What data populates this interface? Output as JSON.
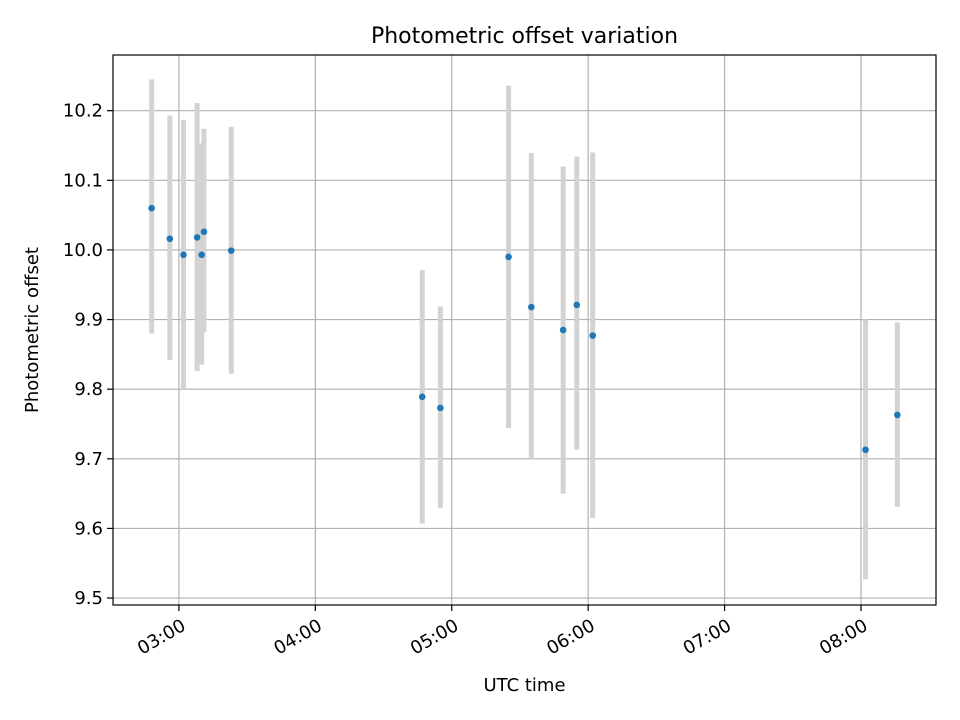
{
  "chart_data": {
    "type": "scatter",
    "title": "Photometric offset variation",
    "xlabel": "UTC time",
    "ylabel": "Photometric offset",
    "x_axis_type": "time",
    "xlim": [
      "02:31",
      "08:33"
    ],
    "ylim": [
      9.49,
      10.28
    ],
    "xticks": [
      "03:00",
      "04:00",
      "05:00",
      "06:00",
      "07:00",
      "08:00"
    ],
    "yticks": [
      9.5,
      9.6,
      9.7,
      9.8,
      9.9,
      10.0,
      10.1,
      10.2
    ],
    "ytick_labels": [
      "9.5",
      "9.6",
      "9.7",
      "9.8",
      "9.9",
      "10.0",
      "10.1",
      "10.2"
    ],
    "grid": true,
    "marker_color": "#1f77b4",
    "errorbar_color": "#d3d3d3",
    "points": [
      {
        "x": "02:48",
        "y": 10.06,
        "ylow": 9.88,
        "yhigh": 10.245
      },
      {
        "x": "02:56",
        "y": 10.016,
        "ylow": 9.842,
        "yhigh": 10.193
      },
      {
        "x": "03:02",
        "y": 9.993,
        "ylow": 9.8,
        "yhigh": 10.187
      },
      {
        "x": "03:08",
        "y": 10.018,
        "ylow": 9.826,
        "yhigh": 10.211
      },
      {
        "x": "03:10",
        "y": 9.993,
        "ylow": 9.835,
        "yhigh": 10.153
      },
      {
        "x": "03:11",
        "y": 10.026,
        "ylow": 9.882,
        "yhigh": 10.174
      },
      {
        "x": "03:23",
        "y": 9.999,
        "ylow": 9.822,
        "yhigh": 10.177
      },
      {
        "x": "04:47",
        "y": 9.789,
        "ylow": 9.607,
        "yhigh": 9.971
      },
      {
        "x": "04:55",
        "y": 9.773,
        "ylow": 9.629,
        "yhigh": 9.919
      },
      {
        "x": "05:25",
        "y": 9.99,
        "ylow": 9.744,
        "yhigh": 10.236
      },
      {
        "x": "05:35",
        "y": 9.918,
        "ylow": 9.7,
        "yhigh": 10.139
      },
      {
        "x": "05:49",
        "y": 9.885,
        "ylow": 9.65,
        "yhigh": 10.12
      },
      {
        "x": "05:55",
        "y": 9.921,
        "ylow": 9.713,
        "yhigh": 10.134
      },
      {
        "x": "06:02",
        "y": 9.877,
        "ylow": 9.615,
        "yhigh": 10.14
      },
      {
        "x": "08:02",
        "y": 9.713,
        "ylow": 9.527,
        "yhigh": 9.9
      },
      {
        "x": "08:16",
        "y": 9.763,
        "ylow": 9.631,
        "yhigh": 9.896
      }
    ]
  }
}
